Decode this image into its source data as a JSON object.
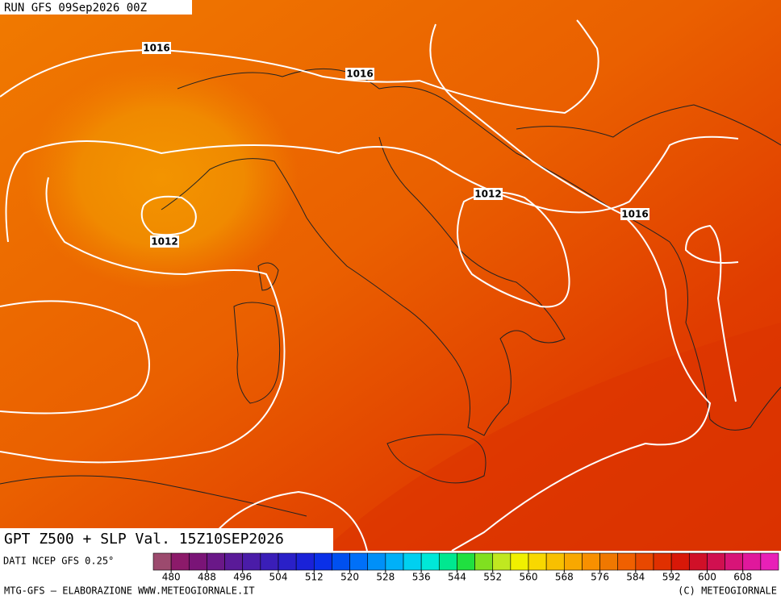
{
  "header": {
    "run": "RUN GFS 09Sep2026 00Z"
  },
  "isobar_labels": [
    "1016",
    "1016",
    "1012",
    "1012",
    "1016"
  ],
  "footer": {
    "title": "GPT Z500 + SLP Val. 15Z10SEP2026",
    "source": "DATI NCEP GFS 0.25°",
    "credit_left": "MTG-GFS — ELABORAZIONE WWW.METEOGIORNALE.IT",
    "credit_right": "(C) METEOGIORNALE"
  },
  "colorbar": {
    "range": [
      476,
      616
    ],
    "ticks": [
      480,
      488,
      496,
      504,
      512,
      520,
      528,
      536,
      544,
      552,
      560,
      568,
      576,
      584,
      592,
      600,
      608
    ],
    "colors": [
      "#9c4a6e",
      "#8c1a6a",
      "#7a1477",
      "#6a1888",
      "#5a1a98",
      "#4a1ca8",
      "#3a1eb8",
      "#2a20c8",
      "#1a22d8",
      "#0a30e8",
      "#0050f0",
      "#0070f8",
      "#0090f8",
      "#00b0f8",
      "#00d0f0",
      "#00e8d8",
      "#00e890",
      "#20e040",
      "#80e020",
      "#c0e820",
      "#f0f000",
      "#f8d800",
      "#f8c000",
      "#f8a800",
      "#f89000",
      "#f07800",
      "#f06000",
      "#e84800",
      "#e03000",
      "#d81808",
      "#d01028",
      "#d01050",
      "#d81478",
      "#e0189c",
      "#e820b8"
    ]
  }
}
